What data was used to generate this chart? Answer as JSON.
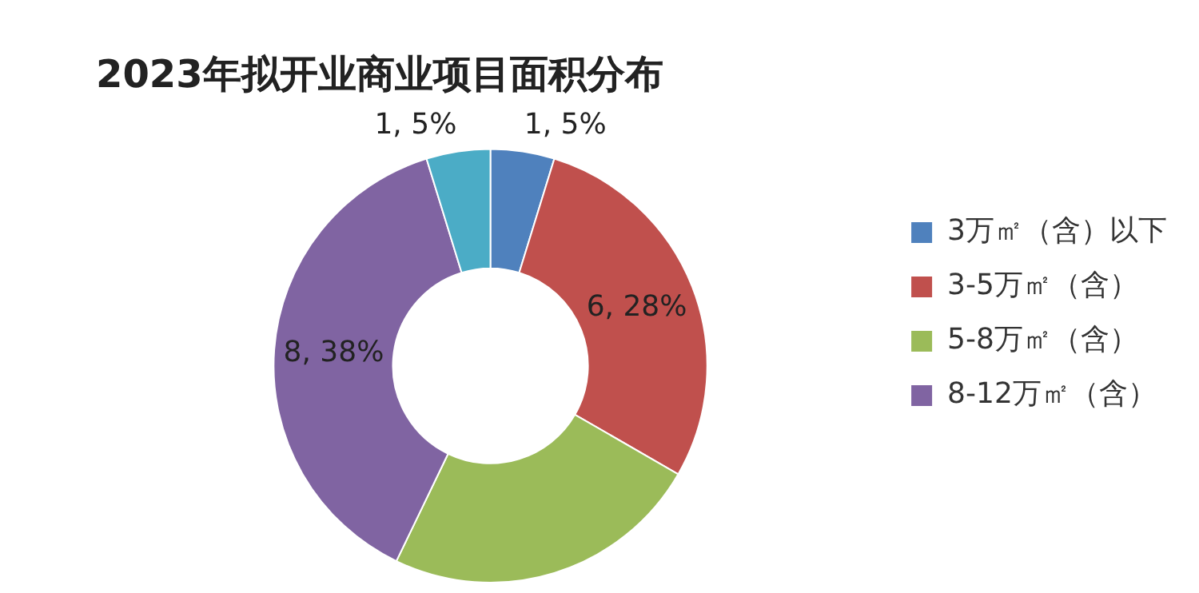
{
  "chart_data": {
    "type": "donut",
    "title": "2023年拟开业商业项目面积分布",
    "categories": [
      "3万㎡（含）以下",
      "3-5万㎡（含）",
      "5-8万㎡（含）",
      "8-12万㎡（含）",
      null
    ],
    "values": [
      1,
      6,
      5,
      8,
      1
    ],
    "colors": [
      "#4f81bd",
      "#c0504d",
      "#9bbb59",
      "#8064a2",
      "#4bacc6"
    ],
    "value_labels": [
      "1, 5%",
      "6, 28%",
      null,
      "8, 38%",
      "1, 5%"
    ],
    "legend": "right"
  }
}
